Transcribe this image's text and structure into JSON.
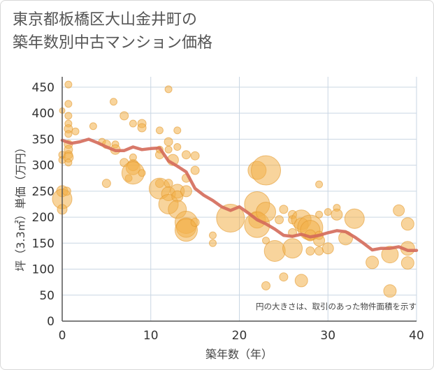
{
  "chart_data": {
    "type": "scatter",
    "title_lines": [
      "東京都板橋区大山金井町の",
      "築年数別中古マンション価格"
    ],
    "xlabel": "築年数（年）",
    "ylabel": "坪（3.3㎡）単価（万円）",
    "note": "円の大きさは、取引のあった物件面積を示す",
    "xlim": [
      0,
      40
    ],
    "ylim": [
      0,
      470
    ],
    "x_ticks": [
      0,
      10,
      20,
      30,
      40
    ],
    "y_ticks": [
      0,
      50,
      100,
      150,
      200,
      250,
      300,
      350,
      400,
      450
    ],
    "grid": true,
    "colors": {
      "bubble_fill": "#f2b04a",
      "bubble_stroke": "#e39a2e",
      "line": "#d46a5a",
      "grid": "#c9d6e3",
      "axis": "#555555"
    },
    "bubbles": [
      {
        "x": 0,
        "y": 405,
        "r": 4
      },
      {
        "x": 0,
        "y": 320,
        "r": 5
      },
      {
        "x": 0,
        "y": 310,
        "r": 5
      },
      {
        "x": 0,
        "y": 250,
        "r": 8
      },
      {
        "x": 0,
        "y": 235,
        "r": 14
      },
      {
        "x": 0,
        "y": 215,
        "r": 7
      },
      {
        "x": 0.5,
        "y": 250,
        "r": 6
      },
      {
        "x": 0.7,
        "y": 455,
        "r": 5
      },
      {
        "x": 0.7,
        "y": 418,
        "r": 5
      },
      {
        "x": 0.7,
        "y": 395,
        "r": 5
      },
      {
        "x": 0.7,
        "y": 380,
        "r": 5
      },
      {
        "x": 0.7,
        "y": 370,
        "r": 6
      },
      {
        "x": 0.7,
        "y": 360,
        "r": 5
      },
      {
        "x": 0.7,
        "y": 340,
        "r": 6
      },
      {
        "x": 0.7,
        "y": 330,
        "r": 6
      },
      {
        "x": 0.7,
        "y": 320,
        "r": 6
      },
      {
        "x": 0.7,
        "y": 315,
        "r": 7
      },
      {
        "x": 0.7,
        "y": 305,
        "r": 5
      },
      {
        "x": 1.5,
        "y": 365,
        "r": 5
      },
      {
        "x": 3.5,
        "y": 375,
        "r": 5
      },
      {
        "x": 4.5,
        "y": 345,
        "r": 5
      },
      {
        "x": 5,
        "y": 340,
        "r": 6
      },
      {
        "x": 5,
        "y": 265,
        "r": 6
      },
      {
        "x": 5.8,
        "y": 422,
        "r": 5
      },
      {
        "x": 6,
        "y": 340,
        "r": 5
      },
      {
        "x": 6,
        "y": 330,
        "r": 7
      },
      {
        "x": 7,
        "y": 395,
        "r": 6
      },
      {
        "x": 7,
        "y": 305,
        "r": 6
      },
      {
        "x": 7.5,
        "y": 275,
        "r": 5
      },
      {
        "x": 8,
        "y": 380,
        "r": 5
      },
      {
        "x": 8,
        "y": 315,
        "r": 5
      },
      {
        "x": 8,
        "y": 300,
        "r": 8
      },
      {
        "x": 8,
        "y": 295,
        "r": 10
      },
      {
        "x": 8,
        "y": 285,
        "r": 16
      },
      {
        "x": 9,
        "y": 380,
        "r": 6
      },
      {
        "x": 9,
        "y": 372,
        "r": 6
      },
      {
        "x": 9,
        "y": 285,
        "r": 5
      },
      {
        "x": 11,
        "y": 367,
        "r": 5
      },
      {
        "x": 11,
        "y": 330,
        "r": 5
      },
      {
        "x": 11,
        "y": 320,
        "r": 6
      },
      {
        "x": 11,
        "y": 265,
        "r": 6
      },
      {
        "x": 11,
        "y": 255,
        "r": 15
      },
      {
        "x": 12,
        "y": 446,
        "r": 5
      },
      {
        "x": 12,
        "y": 345,
        "r": 6
      },
      {
        "x": 12,
        "y": 330,
        "r": 5
      },
      {
        "x": 12,
        "y": 265,
        "r": 6
      },
      {
        "x": 12,
        "y": 245,
        "r": 10
      },
      {
        "x": 12,
        "y": 225,
        "r": 14
      },
      {
        "x": 12.5,
        "y": 310,
        "r": 8
      },
      {
        "x": 13,
        "y": 367,
        "r": 5
      },
      {
        "x": 13,
        "y": 335,
        "r": 5
      },
      {
        "x": 13,
        "y": 250,
        "r": 10
      },
      {
        "x": 13,
        "y": 240,
        "r": 8
      },
      {
        "x": 13,
        "y": 215,
        "r": 13
      },
      {
        "x": 14,
        "y": 320,
        "r": 6
      },
      {
        "x": 14,
        "y": 275,
        "r": 6
      },
      {
        "x": 14,
        "y": 250,
        "r": 8
      },
      {
        "x": 14,
        "y": 190,
        "r": 16
      },
      {
        "x": 14,
        "y": 180,
        "r": 14
      },
      {
        "x": 14,
        "y": 175,
        "r": 16
      },
      {
        "x": 15,
        "y": 318,
        "r": 6
      },
      {
        "x": 15,
        "y": 290,
        "r": 6
      },
      {
        "x": 15,
        "y": 190,
        "r": 6
      },
      {
        "x": 17,
        "y": 165,
        "r": 5
      },
      {
        "x": 17,
        "y": 150,
        "r": 5
      },
      {
        "x": 19,
        "y": 198,
        "r": 20
      },
      {
        "x": 22,
        "y": 290,
        "r": 13
      },
      {
        "x": 22,
        "y": 225,
        "r": 18
      },
      {
        "x": 22,
        "y": 195,
        "r": 12
      },
      {
        "x": 22,
        "y": 185,
        "r": 18
      },
      {
        "x": 23,
        "y": 290,
        "r": 21
      },
      {
        "x": 23,
        "y": 210,
        "r": 14
      },
      {
        "x": 23,
        "y": 155,
        "r": 5
      },
      {
        "x": 23,
        "y": 68,
        "r": 6
      },
      {
        "x": 24,
        "y": 135,
        "r": 15
      },
      {
        "x": 24.5,
        "y": 195,
        "r": 6
      },
      {
        "x": 25,
        "y": 215,
        "r": 6
      },
      {
        "x": 25,
        "y": 85,
        "r": 6
      },
      {
        "x": 26,
        "y": 205,
        "r": 6
      },
      {
        "x": 26,
        "y": 195,
        "r": 6
      },
      {
        "x": 26,
        "y": 170,
        "r": 6
      },
      {
        "x": 26,
        "y": 140,
        "r": 14
      },
      {
        "x": 27,
        "y": 195,
        "r": 14
      },
      {
        "x": 27,
        "y": 185,
        "r": 10
      },
      {
        "x": 27,
        "y": 78,
        "r": 9
      },
      {
        "x": 28,
        "y": 180,
        "r": 18
      },
      {
        "x": 28,
        "y": 175,
        "r": 14
      },
      {
        "x": 28,
        "y": 165,
        "r": 8
      },
      {
        "x": 28,
        "y": 135,
        "r": 6
      },
      {
        "x": 29,
        "y": 263,
        "r": 5
      },
      {
        "x": 29,
        "y": 205,
        "r": 5
      },
      {
        "x": 29,
        "y": 165,
        "r": 6
      },
      {
        "x": 29,
        "y": 155,
        "r": 8
      },
      {
        "x": 29,
        "y": 135,
        "r": 6
      },
      {
        "x": 30,
        "y": 210,
        "r": 5
      },
      {
        "x": 30,
        "y": 140,
        "r": 8
      },
      {
        "x": 31,
        "y": 218,
        "r": 5
      },
      {
        "x": 31,
        "y": 205,
        "r": 8
      },
      {
        "x": 32,
        "y": 160,
        "r": 10
      },
      {
        "x": 33,
        "y": 197,
        "r": 14
      },
      {
        "x": 35,
        "y": 113,
        "r": 9
      },
      {
        "x": 37,
        "y": 58,
        "r": 9
      },
      {
        "x": 37,
        "y": 128,
        "r": 12
      },
      {
        "x": 38,
        "y": 213,
        "r": 8
      },
      {
        "x": 39,
        "y": 187,
        "r": 9
      },
      {
        "x": 39,
        "y": 140,
        "r": 10
      },
      {
        "x": 39,
        "y": 112,
        "r": 9
      }
    ],
    "line": {
      "x": [
        0,
        1,
        2,
        3,
        4,
        5,
        6,
        7,
        8,
        9,
        10,
        11,
        12,
        13,
        14,
        15,
        16,
        17,
        18,
        19,
        20,
        21,
        22,
        23,
        24,
        25,
        26,
        27,
        28,
        29,
        30,
        31,
        32,
        33,
        34,
        35,
        36,
        37,
        38,
        39,
        40
      ],
      "y": [
        348,
        342,
        345,
        350,
        343,
        335,
        328,
        328,
        335,
        330,
        332,
        333,
        308,
        298,
        287,
        255,
        242,
        232,
        220,
        213,
        220,
        208,
        195,
        187,
        177,
        165,
        163,
        167,
        162,
        165,
        170,
        174,
        172,
        162,
        150,
        137,
        140,
        140,
        143,
        136,
        136
      ]
    }
  }
}
